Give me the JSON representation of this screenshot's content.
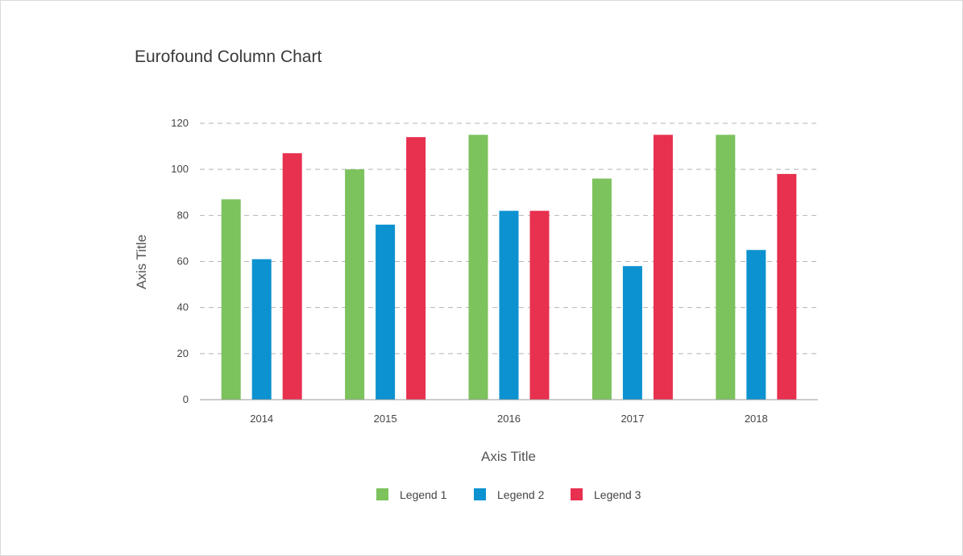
{
  "chart_data": {
    "type": "bar",
    "title": "Eurofound Column Chart",
    "xlabel": "Axis Title",
    "ylabel": "Axis Title",
    "categories": [
      "2014",
      "2015",
      "2016",
      "2017",
      "2018"
    ],
    "ylim": [
      0,
      120
    ],
    "yticks": [
      0,
      20,
      40,
      60,
      80,
      100,
      120
    ],
    "grid": true,
    "legend_position": "bottom",
    "series": [
      {
        "name": "Legend 1",
        "color": "#7cc25d",
        "values": [
          87,
          100,
          115,
          96,
          115
        ]
      },
      {
        "name": "Legend 2",
        "color": "#0c92d0",
        "values": [
          61,
          76,
          82,
          58,
          65
        ]
      },
      {
        "name": "Legend 3",
        "color": "#e8304f",
        "values": [
          107,
          114,
          82,
          115,
          98
        ]
      }
    ]
  }
}
